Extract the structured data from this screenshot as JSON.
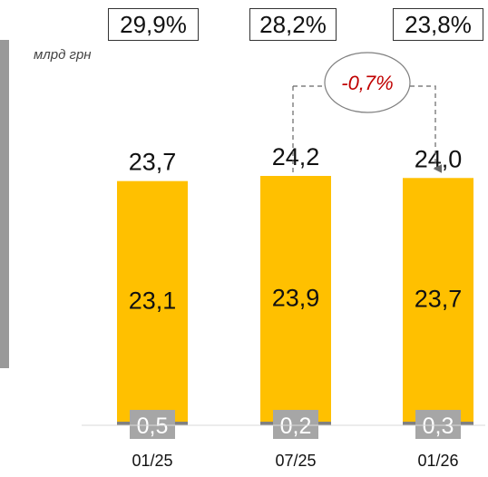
{
  "unit_label": "млрд грн",
  "share_labels": [
    "29,9%",
    "28,2%",
    "23,8%"
  ],
  "change_label": "-0,7%",
  "colors": {
    "main_bar": "#FFC000",
    "small_bar": "#808080",
    "small_label_bg": "#A6A6A6",
    "change_text": "#C00000",
    "strip": "#999999"
  },
  "chart_data": {
    "type": "bar",
    "stacked": true,
    "categories": [
      "01/25",
      "07/25",
      "01/26"
    ],
    "series": [
      {
        "values": [
          0.5,
          0.2,
          0.3
        ]
      },
      {
        "values": [
          23.1,
          23.9,
          23.7
        ]
      }
    ],
    "totals": [
      23.7,
      24.2,
      24.0
    ],
    "total_labels": [
      "23,7",
      "24,2",
      "24,0"
    ],
    "segment_labels": [
      [
        "0,5",
        "0,2",
        "0,3"
      ],
      [
        "23,1",
        "23,9",
        "23,7"
      ]
    ],
    "ylim": [
      0,
      24.2
    ]
  }
}
